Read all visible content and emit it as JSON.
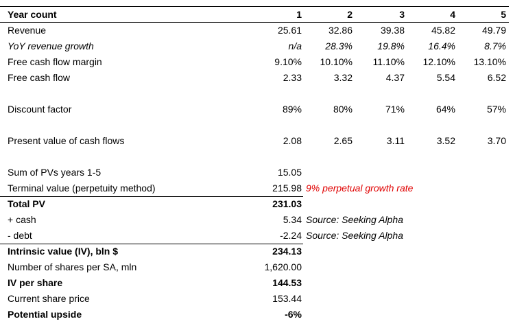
{
  "header": {
    "label": "Year count",
    "years": [
      "1",
      "2",
      "3",
      "4",
      "5"
    ]
  },
  "projection": [
    {
      "label": "Revenue",
      "values": [
        "25.61",
        "32.86",
        "39.38",
        "45.82",
        "49.79"
      ]
    },
    {
      "label": "YoY revenue growth",
      "values": [
        "n/a",
        "28.3%",
        "19.8%",
        "16.4%",
        "8.7%"
      ]
    },
    {
      "label": "Free cash flow margin",
      "values": [
        "9.10%",
        "10.10%",
        "11.10%",
        "12.10%",
        "13.10%"
      ]
    },
    {
      "label": "Free cash flow",
      "values": [
        "2.33",
        "3.32",
        "4.37",
        "5.54",
        "6.52"
      ]
    },
    {
      "label": "Discount factor",
      "values": [
        "89%",
        "80%",
        "71%",
        "64%",
        "57%"
      ]
    },
    {
      "label": "Present value of cash flows",
      "values": [
        "2.08",
        "2.65",
        "3.11",
        "3.52",
        "3.70"
      ]
    }
  ],
  "summary": [
    {
      "label": "Sum of PVs years 1-5",
      "value": "15.05"
    },
    {
      "label": "Terminal value (perpetuity method)",
      "value": "215.98",
      "note": "9% perpetual growth rate"
    },
    {
      "label": "Total PV",
      "value": "231.03"
    },
    {
      "label": "+ cash",
      "value": "5.34",
      "note": "Source: Seeking Alpha"
    },
    {
      "label": "- debt",
      "value": "-2.24",
      "note": "Source: Seeking Alpha"
    },
    {
      "label": "Intrinsic value (IV), bln $",
      "value": "234.13"
    },
    {
      "label": "Number of shares per SA, mln",
      "value": "1,620.00"
    },
    {
      "label": "IV per share",
      "value": "144.53"
    },
    {
      "label": "Current share price",
      "value": "153.44"
    },
    {
      "label": "Potential upside",
      "value": "-6%"
    }
  ]
}
